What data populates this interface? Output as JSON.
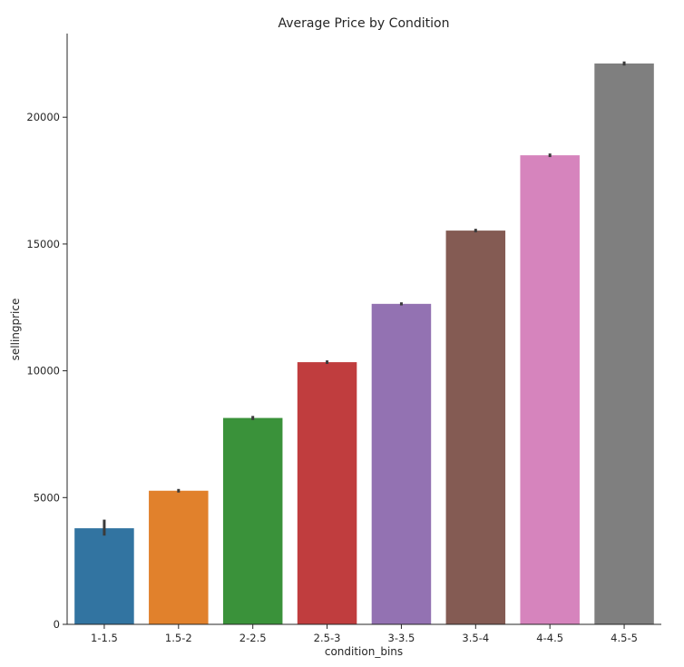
{
  "chart_data": {
    "type": "bar",
    "title": "Average Price by Condition",
    "xlabel": "condition_bins",
    "ylabel": "sellingprice",
    "categories": [
      "1-1.5",
      "1.5-2",
      "2-2.5",
      "2.5-3",
      "3-3.5",
      "3.5-4",
      "4-4.5",
      "4.5-5"
    ],
    "values": [
      3790,
      5270,
      8140,
      10340,
      12640,
      15530,
      18500,
      22120
    ],
    "error_low": [
      3500,
      5200,
      8060,
      10270,
      12580,
      15460,
      18430,
      22040
    ],
    "error_high": [
      4130,
      5340,
      8220,
      10410,
      12700,
      15600,
      18570,
      22200
    ],
    "colors": [
      "#3274a1",
      "#e1812c",
      "#3a923a",
      "#c03d3e",
      "#9372b2",
      "#845b53",
      "#d684bd",
      "#7f7f7f"
    ],
    "ylim": [
      0,
      23300
    ],
    "yticks": [
      0,
      5000,
      10000,
      15000,
      20000
    ],
    "grid": false,
    "legend": "none"
  }
}
